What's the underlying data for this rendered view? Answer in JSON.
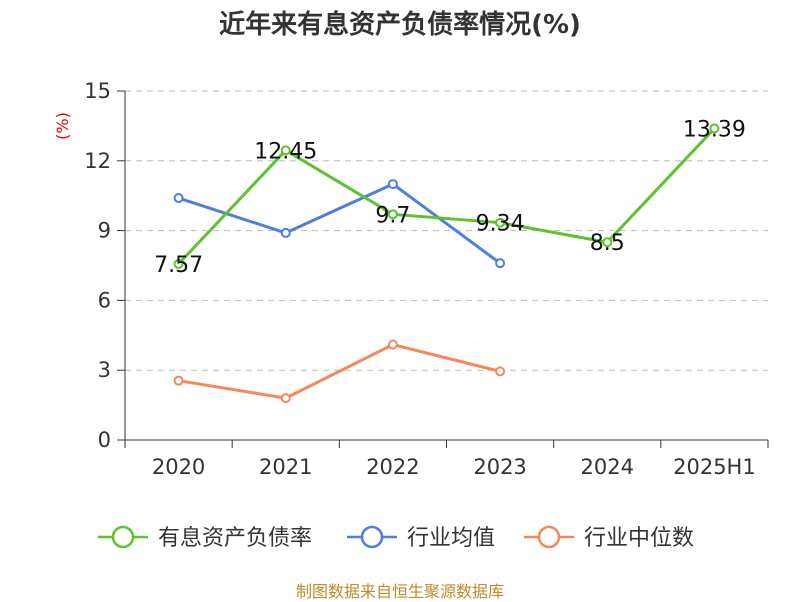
{
  "chart_data": {
    "type": "line",
    "title": "近年来有息资产负债率情况(%)",
    "ylabel": "(%)",
    "categories": [
      "2020",
      "2021",
      "2022",
      "2023",
      "2024",
      "2025H1"
    ],
    "ylim": [
      0,
      15
    ],
    "yticks": [
      0,
      3,
      6,
      9,
      12,
      15
    ],
    "grid": true,
    "legend_position": "bottom",
    "series": [
      {
        "name": "有息资产负债率",
        "color": "#5cc22d",
        "values": [
          7.57,
          12.45,
          9.7,
          9.34,
          8.5,
          13.39
        ],
        "labels": [
          "7.57",
          "12.45",
          "9.7",
          "9.34",
          "8.5",
          "13.39"
        ]
      },
      {
        "name": "行业均值",
        "color": "#4f7fdc",
        "values": [
          10.4,
          8.9,
          11.0,
          7.6,
          null,
          null
        ]
      },
      {
        "name": "行业中位数",
        "color": "#f5875a",
        "values": [
          2.55,
          1.8,
          4.1,
          2.95,
          null,
          null
        ]
      }
    ]
  },
  "source": "制图数据来自恒生聚源数据库"
}
